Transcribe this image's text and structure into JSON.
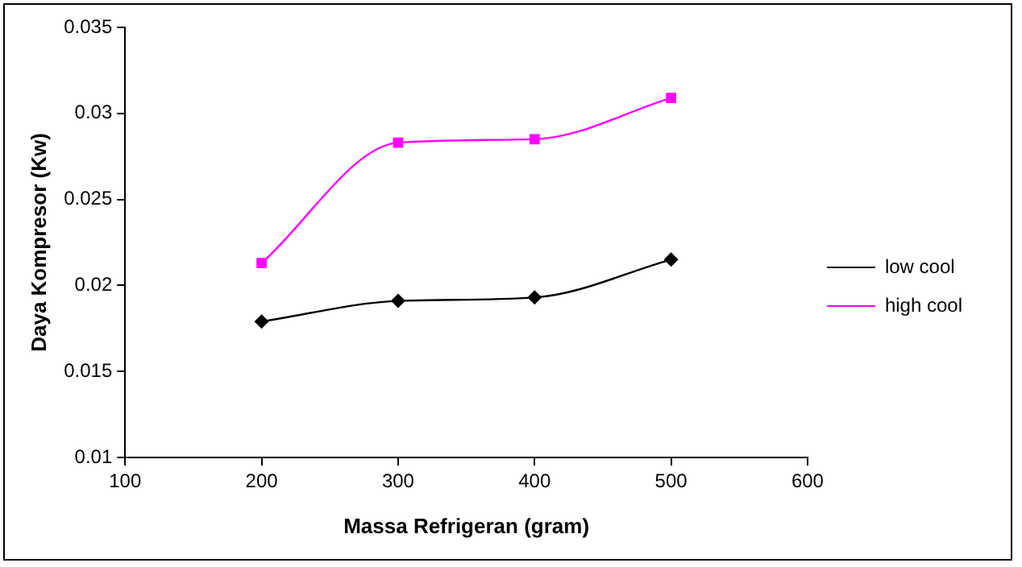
{
  "chart_data": {
    "type": "line",
    "xlabel": "Massa Refrigeran (gram)",
    "ylabel": "Daya Kompresor (Kw)",
    "x": [
      200,
      300,
      400,
      500
    ],
    "series": [
      {
        "name": "low cool",
        "color": "#000000",
        "marker": "diamond",
        "values": [
          0.0179,
          0.0191,
          0.0193,
          0.0215
        ]
      },
      {
        "name": "high cool",
        "color": "#ff00ff",
        "marker": "square",
        "values": [
          0.0213,
          0.0283,
          0.0285,
          0.0309
        ]
      }
    ],
    "xlim": [
      100,
      600
    ],
    "xticks": [
      100,
      200,
      300,
      400,
      500,
      600
    ],
    "ylim": [
      0.01,
      0.035
    ],
    "yticks": [
      0.01,
      0.015,
      0.02,
      0.025,
      0.03,
      0.035
    ],
    "grid": false,
    "legend": "right",
    "line_style": "solid"
  }
}
